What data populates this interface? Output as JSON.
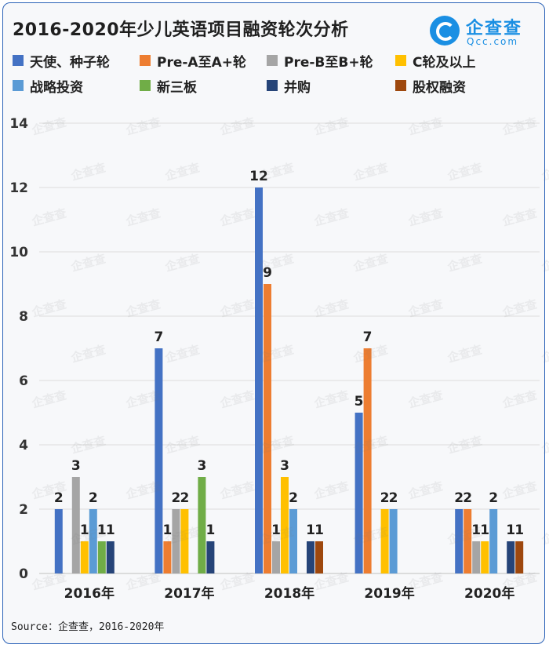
{
  "title": "2016-2020年少儿英语项目融资轮次分析",
  "logo": {
    "cn": "企查查",
    "en": "Qcc.com",
    "icon": "qcc-logo-icon"
  },
  "footer": "Source：企查查，2016-2020年",
  "chart_data": {
    "type": "bar",
    "categories": [
      "2016年",
      "2017年",
      "2018年",
      "2019年",
      "2020年"
    ],
    "ylim": [
      0,
      14
    ],
    "yticks": [
      0,
      2,
      4,
      6,
      8,
      10,
      12,
      14
    ],
    "grid": true,
    "legend_position": "top",
    "series": [
      {
        "name": "天使、种子轮",
        "color": "#4472c4",
        "values": [
          2,
          7,
          12,
          5,
          2
        ]
      },
      {
        "name": "Pre-A至A+轮",
        "color": "#ed7d31",
        "values": [
          0,
          1,
          9,
          7,
          2
        ]
      },
      {
        "name": "Pre-B至B+轮",
        "color": "#a5a5a5",
        "values": [
          3,
          2,
          1,
          0,
          1
        ]
      },
      {
        "name": "C轮及以上",
        "color": "#ffc000",
        "values": [
          1,
          2,
          3,
          2,
          1
        ]
      },
      {
        "name": "战略投资",
        "color": "#5b9bd5",
        "values": [
          2,
          0,
          2,
          2,
          2
        ]
      },
      {
        "name": "新三板",
        "color": "#70ad47",
        "values": [
          1,
          3,
          0,
          0,
          0
        ]
      },
      {
        "name": "并购",
        "color": "#264478",
        "values": [
          1,
          1,
          1,
          0,
          1
        ]
      },
      {
        "name": "股权融资",
        "color": "#9e480e",
        "values": [
          0,
          0,
          1,
          0,
          1
        ]
      }
    ]
  }
}
